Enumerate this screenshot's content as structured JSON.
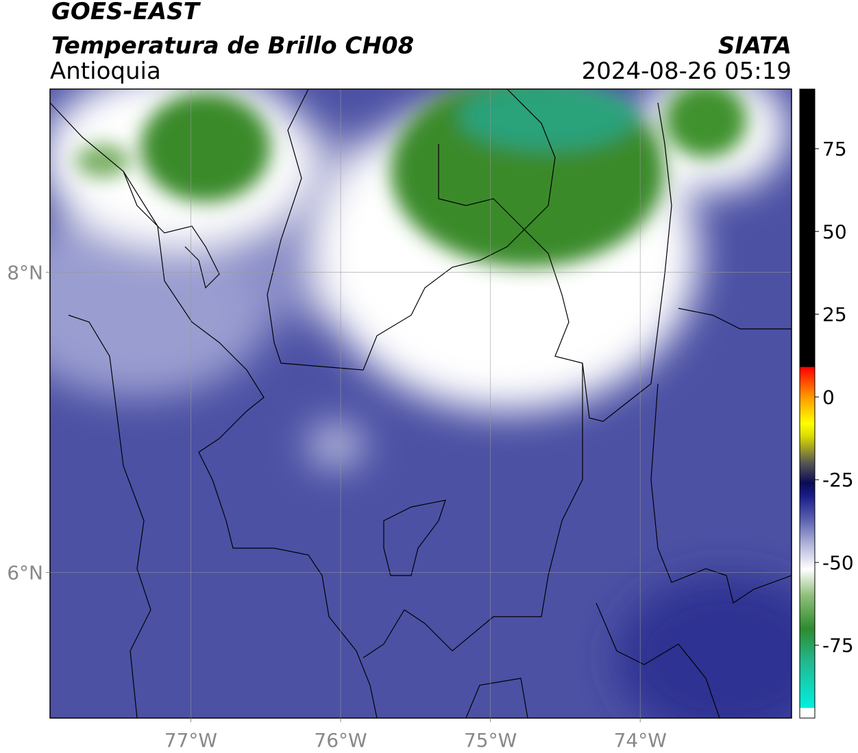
{
  "header": {
    "title": "GOES-EAST",
    "subtitle": "Temperatura de Brillo CH08",
    "region": "Antioquia",
    "source": "SIATA",
    "datetime": "2024-08-26 05:19"
  },
  "map": {
    "xlim": [
      -77.94,
      -72.99
    ],
    "ylim": [
      5.03,
      9.22
    ],
    "xticks": [
      {
        "value": -77,
        "label": "77°W"
      },
      {
        "value": -76,
        "label": "76°W"
      },
      {
        "value": -75,
        "label": "75°W"
      },
      {
        "value": -74,
        "label": "74°W"
      }
    ],
    "yticks": [
      {
        "value": 8,
        "label": "8°N"
      },
      {
        "value": 6,
        "label": "6°N"
      }
    ],
    "grid": true
  },
  "colorbar": {
    "lim": [
      -97,
      93
    ],
    "ticks": [
      75,
      50,
      25,
      0,
      -25,
      -50,
      -75
    ],
    "colormap": [
      {
        "value": -97,
        "color": "#ffffff"
      },
      {
        "value": -94,
        "color": "#ffffff"
      },
      {
        "value": -93.9,
        "color": "#00f0e0"
      },
      {
        "value": -80,
        "color": "#22b890"
      },
      {
        "value": -70,
        "color": "#2e8b2e"
      },
      {
        "value": -60,
        "color": "#8fbf7a"
      },
      {
        "value": -52,
        "color": "#ffffff"
      },
      {
        "value": -45,
        "color": "#b7b9dd"
      },
      {
        "value": -37,
        "color": "#5a5fb0"
      },
      {
        "value": -30,
        "color": "#1a1d8a"
      },
      {
        "value": -26,
        "color": "#0a0a55"
      },
      {
        "value": -20,
        "color": "#555555"
      },
      {
        "value": -12,
        "color": "#d8d800"
      },
      {
        "value": -8,
        "color": "#ffff00"
      },
      {
        "value": 0,
        "color": "#ff9900"
      },
      {
        "value": 9,
        "color": "#ff0000"
      },
      {
        "value": 9.1,
        "color": "#000000"
      },
      {
        "value": 93,
        "color": "#000000"
      }
    ]
  }
}
